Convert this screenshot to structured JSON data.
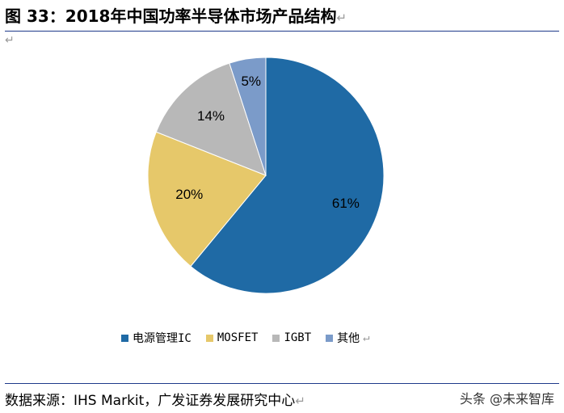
{
  "figure": {
    "title": "图 33：2018年中国功率半导体市场产品结构",
    "paragraph_mark": "↵"
  },
  "chart_data": {
    "type": "pie",
    "title": "",
    "categories": [
      "电源管理IC",
      "MOSFET",
      "IGBT",
      "其他"
    ],
    "values": [
      61,
      20,
      14,
      5
    ],
    "labels": [
      "61%",
      "20%",
      "14%",
      "5%"
    ],
    "colors": [
      "#1f6aa5",
      "#e6c86a",
      "#b8b8b8",
      "#7b9bc9"
    ],
    "start_angle_deg": 0,
    "direction": "clockwise",
    "legend_position": "bottom"
  },
  "legend": {
    "items": [
      {
        "label": "电源管理IC",
        "color": "#1f6aa5"
      },
      {
        "label": "MOSFET",
        "color": "#e6c86a"
      },
      {
        "label": "IGBT",
        "color": "#b8b8b8"
      },
      {
        "label": "其他",
        "color": "#7b9bc9"
      }
    ]
  },
  "source": {
    "text": "数据来源：IHS Markit，广发证券发展研究中心"
  },
  "watermark": {
    "text": "头条 @未来智库"
  }
}
